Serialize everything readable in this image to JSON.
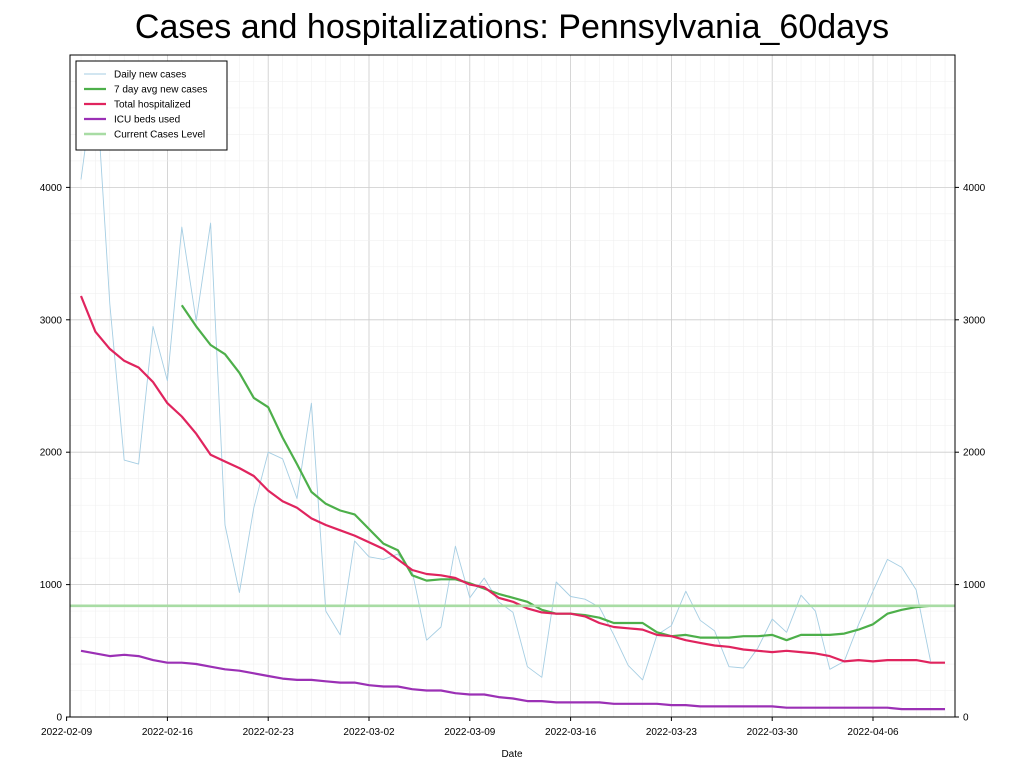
{
  "chart_data": {
    "type": "line",
    "title": "Cases and hospitalizations: Pennsylvania_60days",
    "xlabel": "Date",
    "ylabel": "",
    "ylim": [
      0,
      5000
    ],
    "x_tick_labels": [
      "2022-02-09",
      "2022-02-16",
      "2022-02-23",
      "2022-03-02",
      "2022-03-09",
      "2022-03-16",
      "2022-03-23",
      "2022-03-30",
      "2022-04-06"
    ],
    "y_ticks": [
      0,
      1000,
      2000,
      3000,
      4000
    ],
    "y_tick_labels": [
      "0",
      "1000",
      "2000",
      "3000",
      "4000"
    ],
    "start_date": "2022-02-10",
    "legend_position": "upper-left",
    "series": [
      {
        "name": "Daily new cases",
        "color": "#a6cee3",
        "values": [
          4060,
          4870,
          3120,
          1940,
          1910,
          2950,
          2540,
          3700,
          2990,
          3730,
          1450,
          940,
          1580,
          2000,
          1950,
          1650,
          2370,
          800,
          620,
          1330,
          1210,
          1190,
          1230,
          1100,
          580,
          680,
          1290,
          900,
          1050,
          870,
          790,
          380,
          300,
          1020,
          910,
          890,
          830,
          620,
          390,
          280,
          620,
          690,
          950,
          730,
          650,
          380,
          370,
          520,
          740,
          640,
          920,
          800,
          360,
          420,
          700,
          950,
          1190,
          1130,
          960,
          420
        ]
      },
      {
        "name": "7 day avg new cases",
        "color": "#4daf4a",
        "values": [
          null,
          null,
          null,
          null,
          null,
          null,
          null,
          3110,
          2950,
          2810,
          2740,
          2600,
          2410,
          2340,
          2110,
          1910,
          1700,
          1610,
          1560,
          1530,
          1420,
          1310,
          1260,
          1070,
          1030,
          1040,
          1040,
          1010,
          970,
          930,
          900,
          870,
          810,
          780,
          780,
          770,
          750,
          710,
          710,
          710,
          640,
          610,
          620,
          600,
          600,
          600,
          610,
          610,
          620,
          580,
          620,
          620,
          620,
          630,
          660,
          700,
          780,
          810,
          830,
          840
        ]
      },
      {
        "name": "Total hospitalized",
        "color": "#e0245e",
        "values": [
          3180,
          2910,
          2780,
          2690,
          2640,
          2530,
          2370,
          2270,
          2140,
          1980,
          1930,
          1880,
          1820,
          1710,
          1630,
          1580,
          1500,
          1450,
          1410,
          1370,
          1320,
          1270,
          1190,
          1110,
          1080,
          1070,
          1050,
          1000,
          980,
          900,
          870,
          820,
          790,
          780,
          780,
          760,
          710,
          680,
          670,
          660,
          620,
          610,
          580,
          560,
          540,
          530,
          510,
          500,
          490,
          500,
          490,
          480,
          460,
          420,
          430,
          420,
          430,
          430,
          430,
          410,
          410
        ]
      },
      {
        "name": "ICU beds used",
        "color": "#9b30b5",
        "values": [
          500,
          480,
          460,
          470,
          460,
          430,
          410,
          410,
          400,
          380,
          360,
          350,
          330,
          310,
          290,
          280,
          280,
          270,
          260,
          260,
          240,
          230,
          230,
          210,
          200,
          200,
          180,
          170,
          170,
          150,
          140,
          120,
          120,
          110,
          110,
          110,
          110,
          100,
          100,
          100,
          100,
          90,
          90,
          80,
          80,
          80,
          80,
          80,
          80,
          70,
          70,
          70,
          70,
          70,
          70,
          70,
          70,
          60,
          60,
          60,
          60
        ]
      },
      {
        "name": "Current Cases Level",
        "color": "#a8dca4",
        "constant": 840
      }
    ]
  }
}
